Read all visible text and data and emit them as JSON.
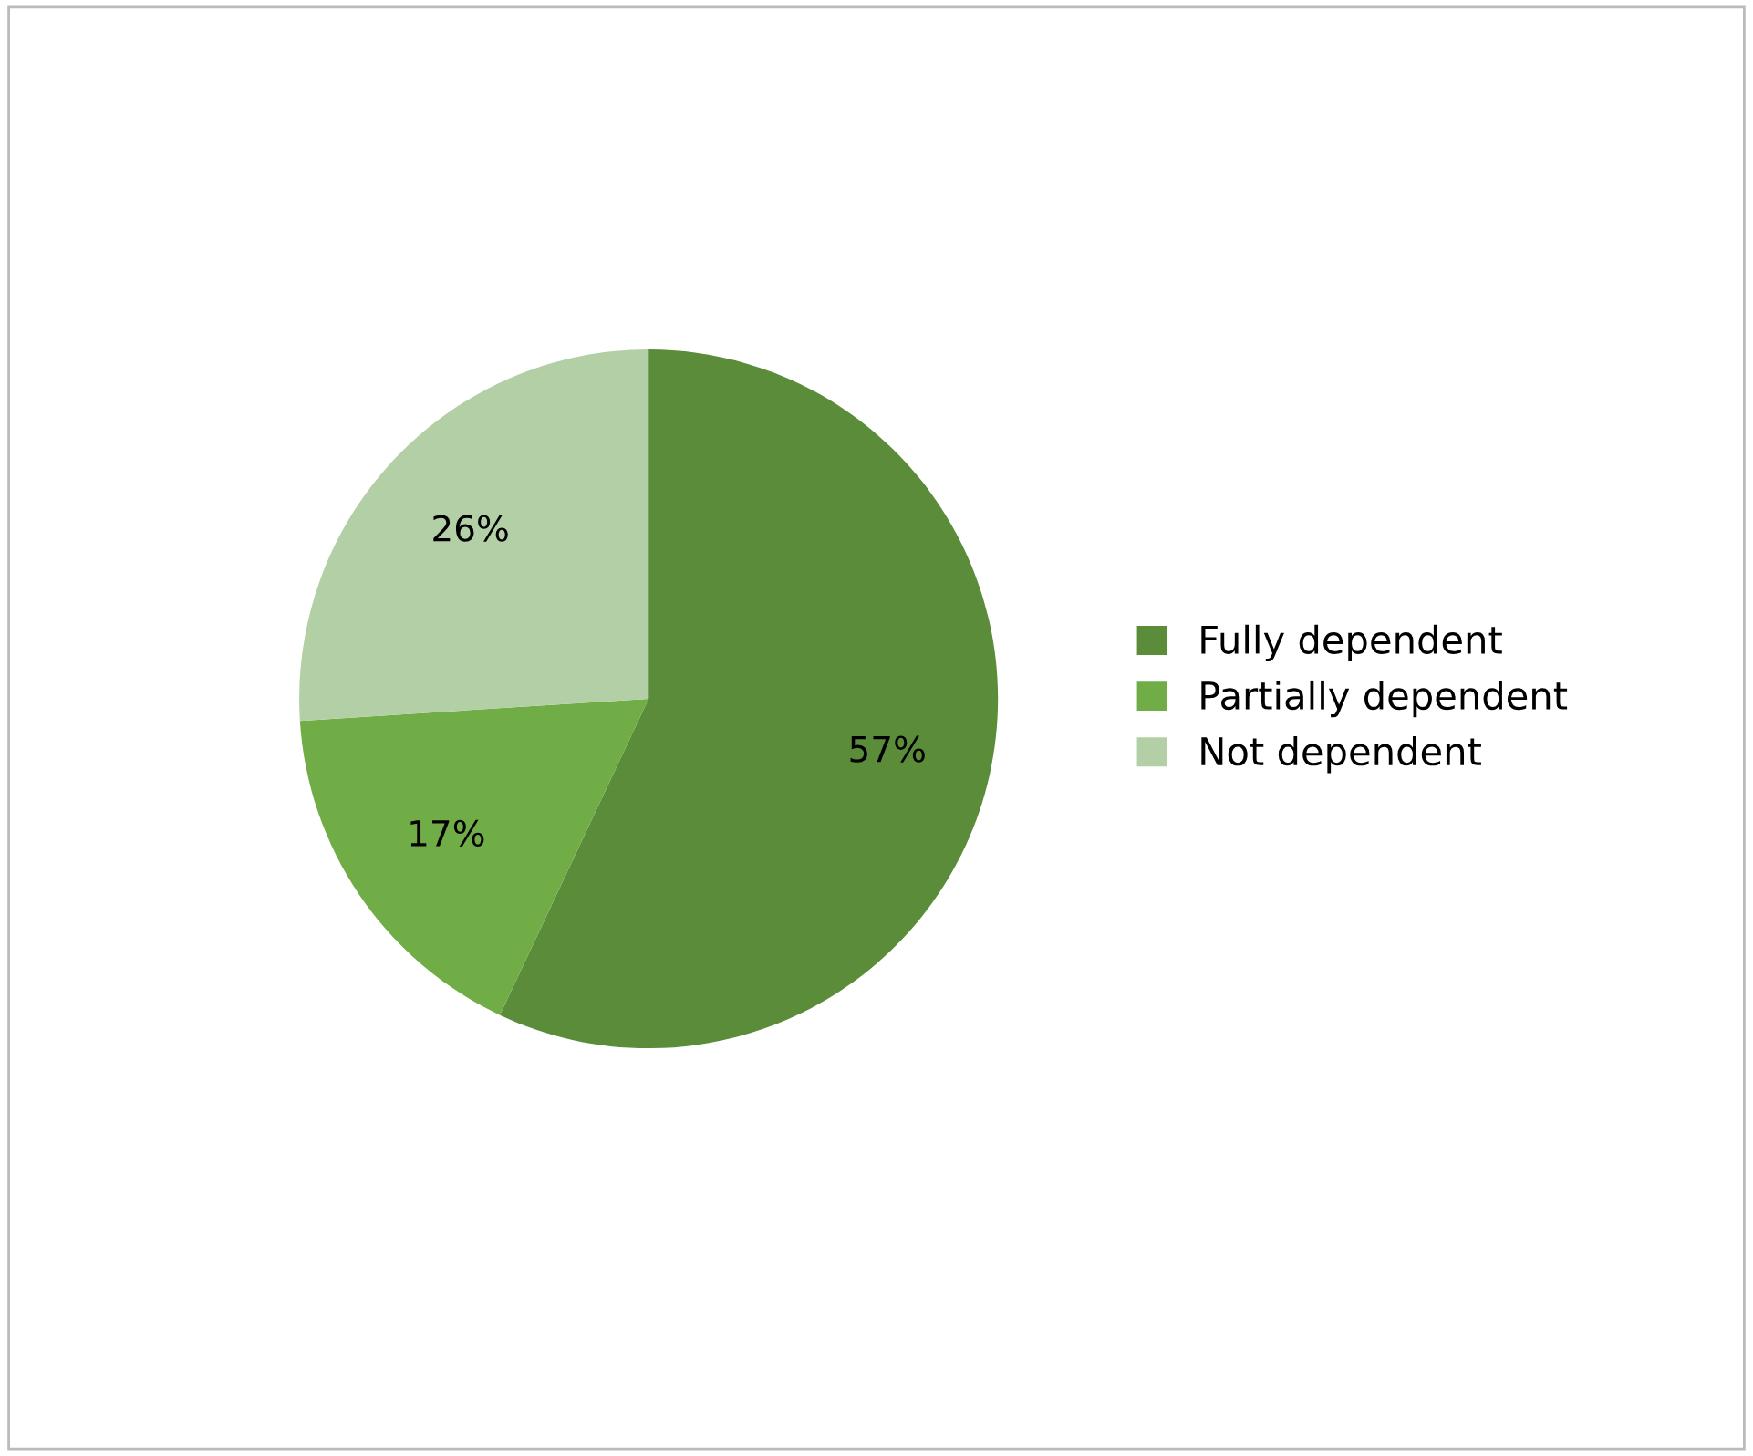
{
  "chart_data": {
    "type": "pie",
    "categories": [
      "Fully dependent",
      "Partially dependent",
      "Not dependent"
    ],
    "values": [
      57,
      17,
      26
    ],
    "value_labels": [
      "57%",
      "17%",
      "26%"
    ],
    "colors": [
      "#5b8c3a",
      "#70ad47",
      "#b2cfa5"
    ],
    "legend": "right"
  }
}
